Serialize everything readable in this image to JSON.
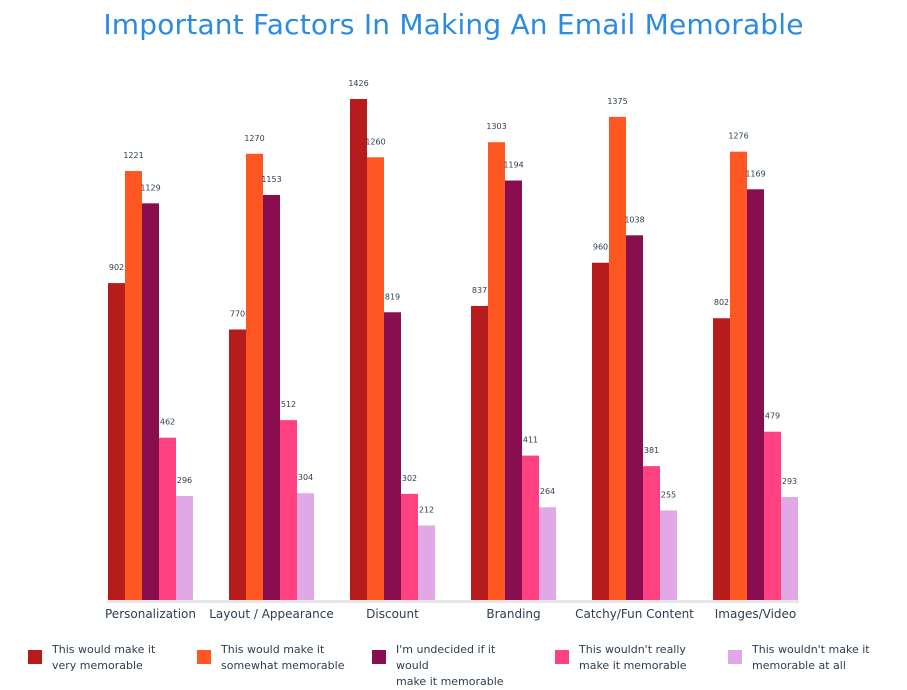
{
  "chart_data": {
    "type": "bar",
    "title": "Important Factors In Making An Email Memorable",
    "xlabel": "",
    "ylabel": "",
    "ylim": [
      0,
      1426
    ],
    "grid": false,
    "legend_position": "bottom",
    "categories": [
      "Personalization",
      "Layout / Appearance",
      "Discount",
      "Branding",
      "Catchy/Fun Content",
      "Images/Video"
    ],
    "series": [
      {
        "name": "This would make it very memorable",
        "legend_lines": [
          "This would make it",
          "very memorable"
        ],
        "color": "#b71c1c",
        "values": [
          902,
          770,
          1426,
          837,
          960,
          802
        ]
      },
      {
        "name": "This would make it somewhat memorable",
        "legend_lines": [
          "This would make it",
          "somewhat memorable"
        ],
        "color": "#ff5722",
        "values": [
          1221,
          1270,
          1260,
          1303,
          1375,
          1276
        ]
      },
      {
        "name": "I'm undecided if it would make it memorable",
        "legend_lines": [
          "I'm undecided if it would",
          "make it memorable"
        ],
        "color": "#880e4f",
        "values": [
          1129,
          1153,
          819,
          1194,
          1038,
          1169
        ]
      },
      {
        "name": "This wouldn't really make it memorable",
        "legend_lines": [
          "This wouldn't really",
          "make it memorable"
        ],
        "color": "#ff4081",
        "values": [
          462,
          512,
          302,
          411,
          381,
          479
        ]
      },
      {
        "name": "This wouldn't make it memorable at all",
        "legend_lines": [
          "This wouldn't make it",
          "memorable at all"
        ],
        "color": "#e1a8e6",
        "values": [
          296,
          304,
          212,
          264,
          255,
          293
        ]
      }
    ]
  },
  "colors": {
    "title": "#2b8be0",
    "axis": "#e6e6e6",
    "text": "#2c3e50"
  }
}
